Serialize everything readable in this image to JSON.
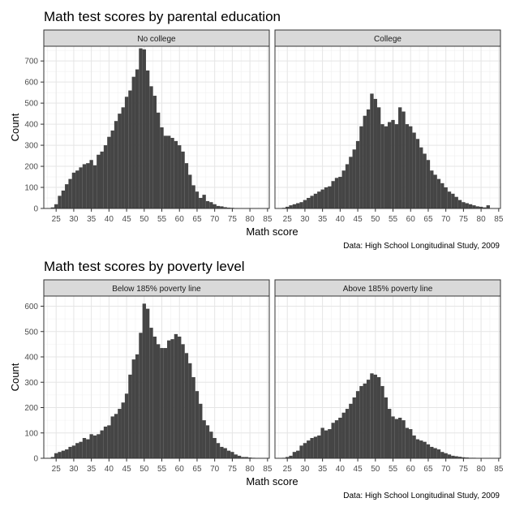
{
  "chart_data": [
    {
      "type": "bar",
      "title": "Math test scores by parental education",
      "xlabel": "Math score",
      "ylabel": "Count",
      "caption": "Data: High School Longitudinal Study, 2009",
      "bin_width": 1,
      "xlim": [
        21.5,
        85.5
      ],
      "ylim": [
        0,
        770
      ],
      "x_ticks": [
        25,
        30,
        35,
        40,
        45,
        50,
        55,
        60,
        65,
        70,
        75,
        80,
        85
      ],
      "y_ticks": [
        0,
        100,
        200,
        300,
        400,
        500,
        600,
        700
      ],
      "grid": true,
      "bar_color": "#454545",
      "panels": [
        {
          "label": "No college",
          "bins": [
            24,
            25,
            26,
            27,
            28,
            29,
            30,
            31,
            32,
            33,
            34,
            35,
            36,
            37,
            38,
            39,
            40,
            41,
            42,
            43,
            44,
            45,
            46,
            47,
            48,
            49,
            50,
            51,
            52,
            53,
            54,
            55,
            56,
            57,
            58,
            59,
            60,
            61,
            62,
            63,
            64,
            65,
            66,
            67,
            68,
            69,
            70,
            71,
            72,
            73,
            74,
            75,
            76,
            77,
            78,
            79,
            80,
            81,
            82
          ],
          "values": [
            5,
            20,
            60,
            85,
            115,
            140,
            170,
            180,
            195,
            210,
            215,
            230,
            205,
            255,
            270,
            300,
            340,
            370,
            415,
            450,
            480,
            530,
            560,
            625,
            660,
            760,
            755,
            655,
            580,
            535,
            455,
            385,
            345,
            345,
            335,
            320,
            300,
            270,
            215,
            160,
            110,
            80,
            50,
            65,
            35,
            30,
            20,
            12,
            10,
            6,
            4,
            3,
            2,
            1,
            1,
            1,
            1,
            0,
            1
          ]
        },
        {
          "label": "College",
          "bins": [
            24,
            25,
            26,
            27,
            28,
            29,
            30,
            31,
            32,
            33,
            34,
            35,
            36,
            37,
            38,
            39,
            40,
            41,
            42,
            43,
            44,
            45,
            46,
            47,
            48,
            49,
            50,
            51,
            52,
            53,
            54,
            55,
            56,
            57,
            58,
            59,
            60,
            61,
            62,
            63,
            64,
            65,
            66,
            67,
            68,
            69,
            70,
            71,
            72,
            73,
            74,
            75,
            76,
            77,
            78,
            79,
            80,
            81,
            82
          ],
          "values": [
            3,
            8,
            15,
            20,
            25,
            30,
            40,
            50,
            60,
            70,
            80,
            90,
            100,
            105,
            130,
            145,
            150,
            180,
            210,
            245,
            280,
            320,
            390,
            440,
            470,
            545,
            520,
            480,
            400,
            390,
            410,
            420,
            400,
            480,
            460,
            400,
            390,
            360,
            330,
            290,
            260,
            230,
            180,
            160,
            140,
            120,
            100,
            80,
            70,
            55,
            40,
            30,
            25,
            20,
            15,
            10,
            8,
            5,
            15
          ]
        }
      ]
    },
    {
      "type": "bar",
      "title": "Math test scores by poverty level",
      "xlabel": "Math score",
      "ylabel": "Count",
      "caption": "Data: High School Longitudinal Study, 2009",
      "bin_width": 1,
      "xlim": [
        21.5,
        85.5
      ],
      "ylim": [
        0,
        640
      ],
      "x_ticks": [
        25,
        30,
        35,
        40,
        45,
        50,
        55,
        60,
        65,
        70,
        75,
        80,
        85
      ],
      "y_ticks": [
        0,
        100,
        200,
        300,
        400,
        500,
        600
      ],
      "grid": true,
      "bar_color": "#454545",
      "panels": [
        {
          "label": "Below 185% poverty line",
          "bins": [
            24,
            25,
            26,
            27,
            28,
            29,
            30,
            31,
            32,
            33,
            34,
            35,
            36,
            37,
            38,
            39,
            40,
            41,
            42,
            43,
            44,
            45,
            46,
            47,
            48,
            49,
            50,
            51,
            52,
            53,
            54,
            55,
            56,
            57,
            58,
            59,
            60,
            61,
            62,
            63,
            64,
            65,
            66,
            67,
            68,
            69,
            70,
            71,
            72,
            73,
            74,
            75,
            76,
            77,
            78,
            79,
            80,
            81,
            82
          ],
          "values": [
            5,
            20,
            25,
            30,
            35,
            45,
            50,
            60,
            65,
            80,
            75,
            95,
            90,
            95,
            110,
            125,
            130,
            165,
            175,
            195,
            220,
            255,
            330,
            390,
            410,
            495,
            610,
            590,
            515,
            480,
            450,
            435,
            435,
            465,
            470,
            490,
            480,
            450,
            415,
            375,
            320,
            265,
            215,
            150,
            130,
            105,
            80,
            60,
            45,
            40,
            30,
            25,
            15,
            10,
            5,
            5,
            3,
            2,
            1
          ]
        },
        {
          "label": "Above 185% poverty line",
          "bins": [
            24,
            25,
            26,
            27,
            28,
            29,
            30,
            31,
            32,
            33,
            34,
            35,
            36,
            37,
            38,
            39,
            40,
            41,
            42,
            43,
            44,
            45,
            46,
            47,
            48,
            49,
            50,
            51,
            52,
            53,
            54,
            55,
            56,
            57,
            58,
            59,
            60,
            61,
            62,
            63,
            64,
            65,
            66,
            67,
            68,
            69,
            70,
            71,
            72,
            73,
            74,
            75,
            76,
            77,
            78,
            79,
            80,
            81,
            82
          ],
          "values": [
            2,
            5,
            10,
            25,
            30,
            50,
            60,
            70,
            80,
            85,
            90,
            120,
            110,
            115,
            140,
            150,
            160,
            180,
            195,
            215,
            240,
            265,
            285,
            295,
            310,
            335,
            330,
            320,
            285,
            240,
            195,
            165,
            155,
            160,
            150,
            120,
            115,
            90,
            75,
            70,
            65,
            55,
            45,
            40,
            35,
            25,
            20,
            15,
            10,
            8,
            6,
            4,
            3,
            2,
            2,
            1,
            1,
            1,
            1
          ]
        }
      ]
    }
  ]
}
